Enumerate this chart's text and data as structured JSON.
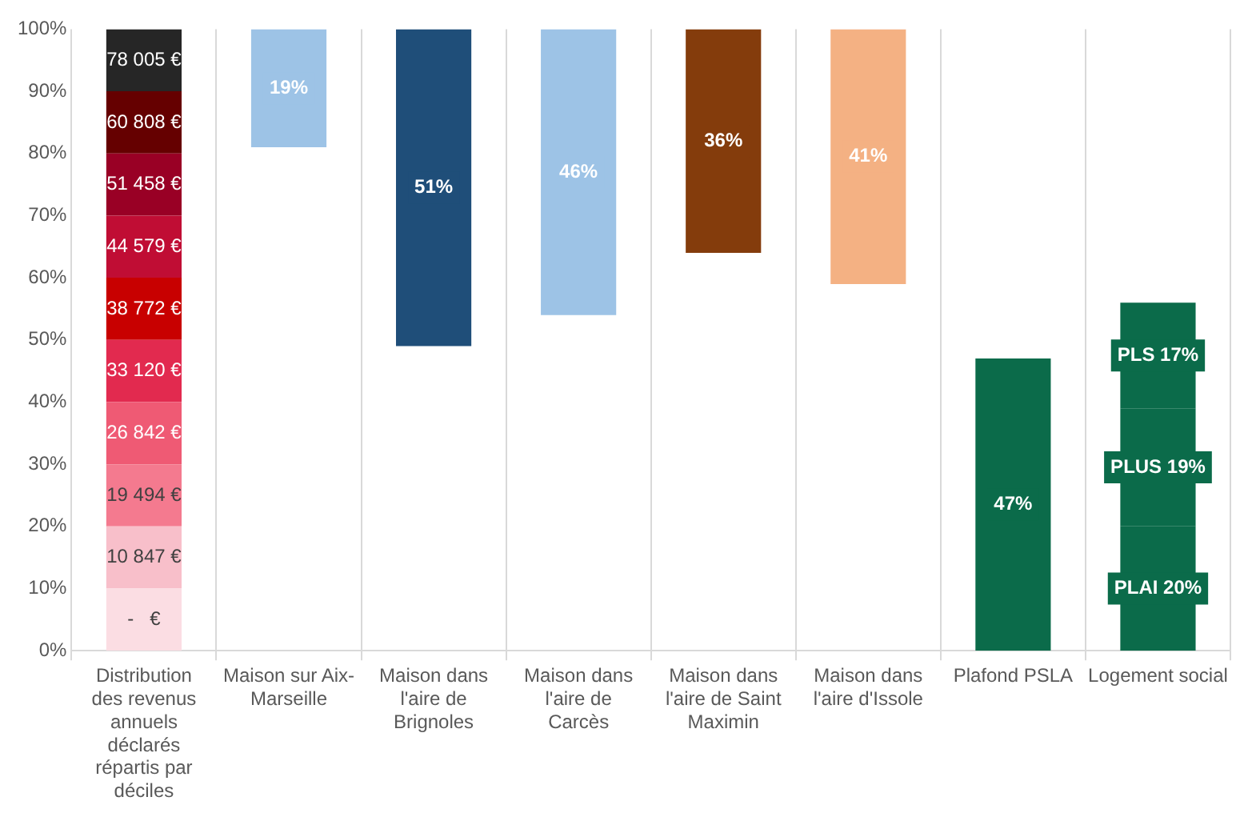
{
  "chart_data": {
    "type": "bar",
    "stacked": true,
    "grid": "x",
    "legend": false,
    "categories": [
      "Distribution des revenus annuels déclarés répartis par déciles",
      "Maison sur Aix-Marseille",
      "Maison dans l'aire de Brignoles",
      "Maison dans l'aire de Carcès",
      "Maison dans l'aire de Saint Maximin",
      "Maison dans l'aire d'Issole",
      "Plafond PSLA",
      "Logement social"
    ],
    "ylim": [
      0,
      100
    ],
    "yticks": [
      {
        "value": 0,
        "label": "0%"
      },
      {
        "value": 10,
        "label": "10%"
      },
      {
        "value": 20,
        "label": "20%"
      },
      {
        "value": 30,
        "label": "30%"
      },
      {
        "value": 40,
        "label": "40%"
      },
      {
        "value": 50,
        "label": "50%"
      },
      {
        "value": 60,
        "label": "60%"
      },
      {
        "value": 70,
        "label": "70%"
      },
      {
        "value": 80,
        "label": "80%"
      },
      {
        "value": 90,
        "label": "90%"
      },
      {
        "value": 100,
        "label": "100%"
      }
    ],
    "series": [
      {
        "name": "-   €",
        "color": "#fbdde3",
        "values": [
          10,
          null,
          null,
          null,
          null,
          null,
          null,
          null
        ]
      },
      {
        "name": "10 847 €",
        "color": "#f8bfca",
        "values": [
          10,
          null,
          null,
          null,
          null,
          null,
          null,
          null
        ]
      },
      {
        "name": "19 494 €",
        "color": "#f47a8f",
        "values": [
          10,
          null,
          null,
          null,
          null,
          null,
          null,
          null
        ]
      },
      {
        "name": "26 842 €",
        "color": "#ef5a74",
        "values": [
          10,
          null,
          null,
          null,
          null,
          null,
          null,
          null
        ]
      },
      {
        "name": "33 120 €",
        "color": "#e22a4f",
        "values": [
          10,
          null,
          null,
          null,
          null,
          null,
          null,
          null
        ]
      },
      {
        "name": "38 772 €",
        "color": "#c80000",
        "values": [
          10,
          null,
          null,
          null,
          null,
          null,
          null,
          null
        ]
      },
      {
        "name": "44 579 €",
        "color": "#c00d34",
        "values": [
          10,
          null,
          null,
          null,
          null,
          null,
          null,
          null
        ]
      },
      {
        "name": "51 458 €",
        "color": "#990025",
        "values": [
          10,
          null,
          null,
          null,
          null,
          null,
          null,
          null
        ]
      },
      {
        "name": "60 808 €",
        "color": "#650000",
        "values": [
          10,
          null,
          null,
          null,
          null,
          null,
          null,
          null
        ]
      },
      {
        "name": "78 005 €",
        "color": "#262626",
        "values": [
          10,
          null,
          null,
          null,
          null,
          null,
          null,
          null
        ]
      },
      {
        "colors": [
          null,
          "#9dc3e6",
          "#1f4e79",
          "#9dc3e6",
          "#843c0c",
          "#f4b183",
          "#0b6b4a",
          null
        ],
        "base": [
          null,
          81,
          49,
          54,
          64,
          59,
          0,
          null
        ],
        "values": [
          null,
          19,
          51,
          46,
          36,
          41,
          47,
          null
        ],
        "value_labels": [
          null,
          "19%",
          "51%",
          "46%",
          "36%",
          "41%",
          "47%",
          null
        ]
      },
      {
        "color": "#0b6b4a",
        "values": [
          null,
          null,
          null,
          null,
          null,
          null,
          null,
          20
        ],
        "value_labels": [
          null,
          null,
          null,
          null,
          null,
          null,
          null,
          "PLAI 20%"
        ]
      },
      {
        "color": "#0b6b4a",
        "values": [
          null,
          null,
          null,
          null,
          null,
          null,
          null,
          19
        ],
        "value_labels": [
          null,
          null,
          null,
          null,
          null,
          null,
          null,
          "PLUS 19%"
        ]
      },
      {
        "color": "#0b6b4a",
        "values": [
          null,
          null,
          null,
          null,
          null,
          null,
          null,
          17
        ],
        "value_labels": [
          null,
          null,
          null,
          null,
          null,
          null,
          null,
          "PLS 17%"
        ]
      }
    ]
  }
}
